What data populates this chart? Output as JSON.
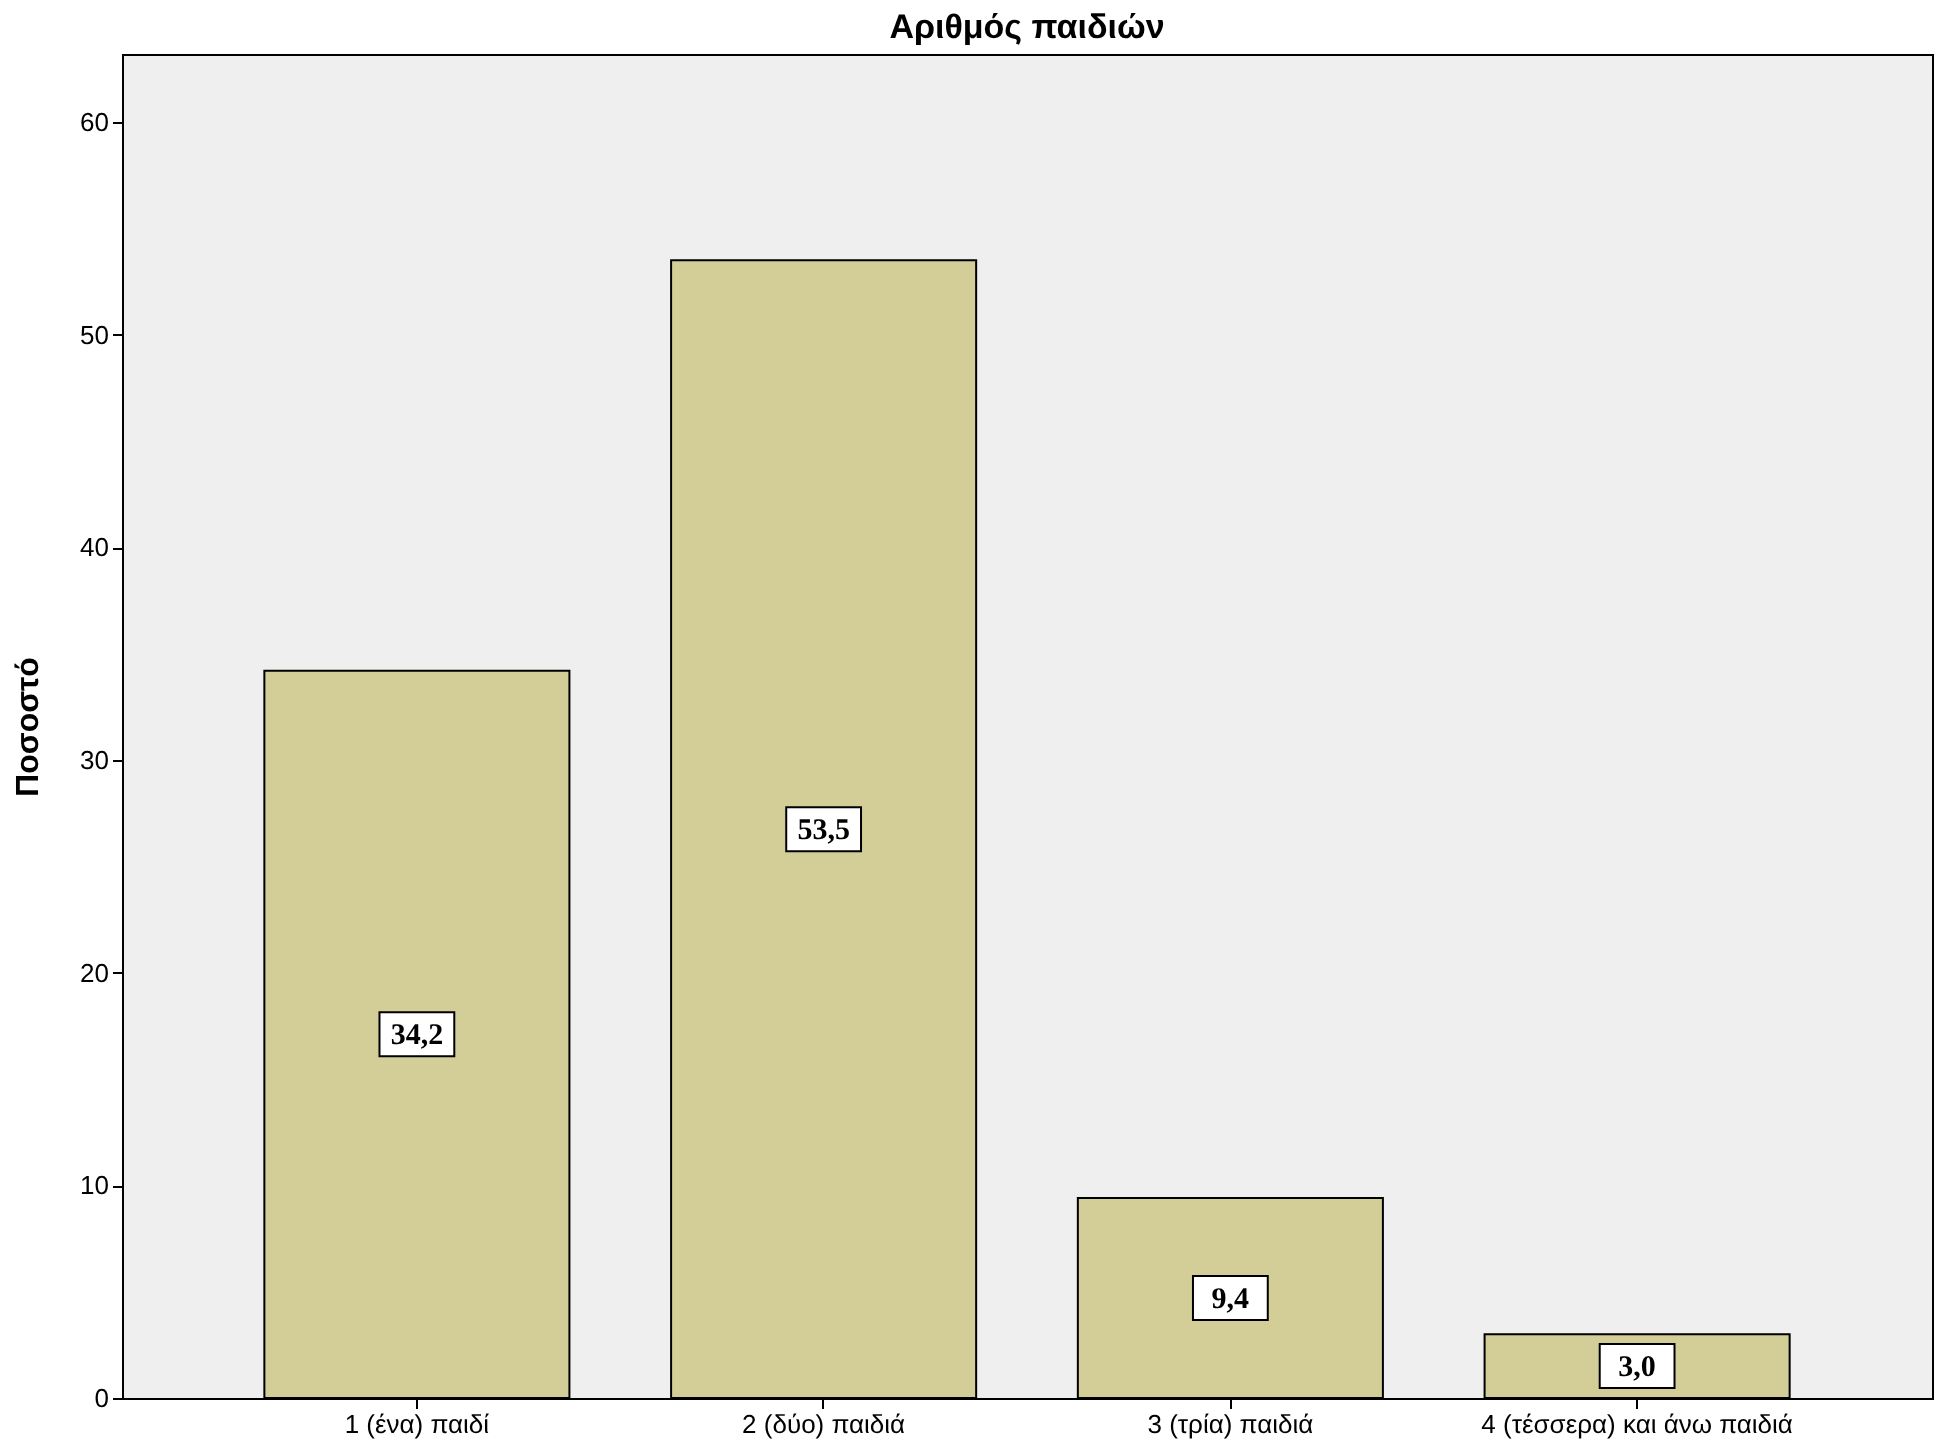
{
  "chart_data": {
    "type": "bar",
    "title": "Αριθμός παιδιών",
    "ylabel": "Ποσοστό",
    "categories": [
      "1 (ένα) παιδί",
      "2 (δύο) παιδιά",
      "3 (τρία) παιδιά",
      "4 (τέσσερα) και άνω παιδιά"
    ],
    "values": [
      34.2,
      53.5,
      9.4,
      3.0
    ],
    "value_labels": [
      "34,2",
      "53,5",
      "9,4",
      "3,0"
    ],
    "color": "#d3ce97",
    "ylim": [
      0,
      63.2
    ],
    "yticks": [
      0,
      10,
      20,
      30,
      40,
      50,
      60
    ],
    "grid": false
  }
}
